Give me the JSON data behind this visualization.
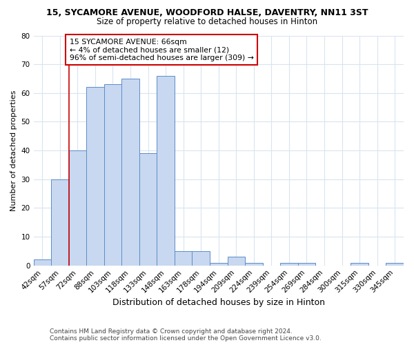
{
  "title": "15, SYCAMORE AVENUE, WOODFORD HALSE, DAVENTRY, NN11 3ST",
  "subtitle": "Size of property relative to detached houses in Hinton",
  "xlabel": "Distribution of detached houses by size in Hinton",
  "ylabel": "Number of detached properties",
  "categories": [
    "42sqm",
    "57sqm",
    "72sqm",
    "88sqm",
    "103sqm",
    "118sqm",
    "133sqm",
    "148sqm",
    "163sqm",
    "178sqm",
    "194sqm",
    "209sqm",
    "224sqm",
    "239sqm",
    "254sqm",
    "269sqm",
    "284sqm",
    "300sqm",
    "315sqm",
    "330sqm",
    "345sqm"
  ],
  "values": [
    2,
    30,
    40,
    62,
    63,
    65,
    39,
    66,
    5,
    5,
    1,
    3,
    1,
    0,
    1,
    1,
    0,
    0,
    1,
    0,
    1
  ],
  "bar_color": "#c8d8f0",
  "bar_edge_color": "#5b8cc8",
  "vline_color": "#cc0000",
  "vline_x_index": 2,
  "annotation_text": "15 SYCAMORE AVENUE: 66sqm\n← 4% of detached houses are smaller (12)\n96% of semi-detached houses are larger (309) →",
  "annotation_box_facecolor": "#ffffff",
  "annotation_box_edgecolor": "#cc0000",
  "ylim": [
    0,
    80
  ],
  "yticks": [
    0,
    10,
    20,
    30,
    40,
    50,
    60,
    70,
    80
  ],
  "footer": "Contains HM Land Registry data © Crown copyright and database right 2024.\nContains public sector information licensed under the Open Government Licence v3.0.",
  "bg_color": "#ffffff",
  "plot_bg_color": "#ffffff",
  "grid_color": "#d8e4f0",
  "title_fontsize": 9,
  "subtitle_fontsize": 8.5,
  "xlabel_fontsize": 9,
  "ylabel_fontsize": 8,
  "tick_fontsize": 7.5,
  "footer_fontsize": 6.5
}
